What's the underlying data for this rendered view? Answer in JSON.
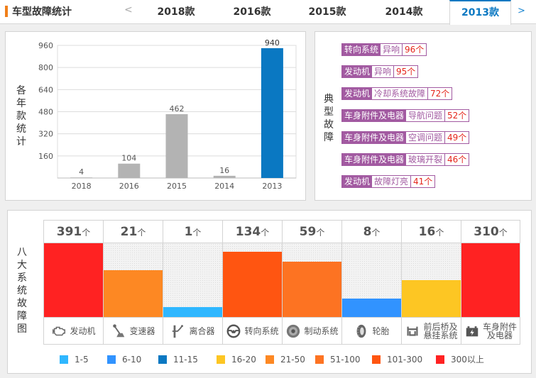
{
  "header": {
    "title": "车型故障统计",
    "prev_label": "<",
    "next_label": ">",
    "tabs": [
      {
        "label": "2018款",
        "active": false
      },
      {
        "label": "2016款",
        "active": false
      },
      {
        "label": "2015款",
        "active": false
      },
      {
        "label": "2014款",
        "active": false
      },
      {
        "label": "2013款",
        "active": true
      }
    ]
  },
  "year_chart": {
    "vertical_label": [
      "各",
      "年",
      "款",
      "统",
      "计"
    ]
  },
  "chart_data": [
    {
      "type": "bar",
      "title": "",
      "ylabel": "各年款统计",
      "xlabel": "",
      "categories": [
        "2018",
        "2016",
        "2015",
        "2014",
        "2013"
      ],
      "values": [
        4,
        104,
        462,
        16,
        940
      ],
      "highlight_category": "2013",
      "colors": {
        "default": "#b3b3b3",
        "highlight": "#0a78c2"
      },
      "ylim": [
        0,
        960
      ],
      "yticks": [
        160,
        320,
        480,
        640,
        800,
        960
      ],
      "grid": true,
      "data_labels": true
    },
    {
      "type": "bar",
      "title": "",
      "ylabel": "八大系统故障图",
      "categories": [
        "发动机",
        "变速器",
        "离合器",
        "转向系统",
        "制动系统",
        "轮胎",
        "前后桥及悬挂系统",
        "车身附件及电器"
      ],
      "values": [
        391,
        21,
        1,
        134,
        59,
        8,
        16,
        310
      ],
      "unit": "个",
      "legend_position": "bottom"
    }
  ],
  "typical_faults": {
    "vertical_label": [
      "典",
      "型",
      "故",
      "障"
    ],
    "items": [
      {
        "system": "转向系统",
        "issue": "异响",
        "count": "96个"
      },
      {
        "system": "发动机",
        "issue": "异响",
        "count": "95个"
      },
      {
        "system": "发动机",
        "issue": "冷却系统故障",
        "count": "72个"
      },
      {
        "system": "车身附件及电器",
        "issue": "导航问题",
        "count": "52个"
      },
      {
        "system": "车身附件及电器",
        "issue": "空调问题",
        "count": "49个"
      },
      {
        "system": "车身附件及电器",
        "issue": "玻璃开裂",
        "count": "46个"
      },
      {
        "system": "发动机",
        "issue": "故障灯亮",
        "count": "41个"
      }
    ],
    "colors": {
      "tag": "#a25aa1",
      "count": "#e5261c"
    }
  },
  "systems": {
    "vertical_label": [
      "八",
      "大",
      "系",
      "统",
      "故",
      "障",
      "图"
    ],
    "unit": "个",
    "items": [
      {
        "name": "发动机",
        "count": "391",
        "level": 1.0,
        "color": "#ff2222",
        "icon": "engine-icon"
      },
      {
        "name": "变速器",
        "count": "21",
        "level": 0.63,
        "color": "#fd8823",
        "icon": "gear-shifter-icon"
      },
      {
        "name": "离合器",
        "count": "1",
        "level": 0.13,
        "color": "#2fb7ff",
        "icon": "clutch-pedal-icon"
      },
      {
        "name": "转向系统",
        "count": "134",
        "level": 0.88,
        "color": "#ff5511",
        "icon": "steering-wheel-icon"
      },
      {
        "name": "制动系统",
        "count": "59",
        "level": 0.75,
        "color": "#fd7322",
        "icon": "brake-disc-icon"
      },
      {
        "name": "轮胎",
        "count": "8",
        "level": 0.25,
        "color": "#3193ff",
        "icon": "tire-icon"
      },
      {
        "name": "前后桥及\n悬挂系统",
        "name_lines": [
          "前后桥及",
          "悬挂系统"
        ],
        "count": "16",
        "level": 0.5,
        "color": "#fdc623",
        "icon": "suspension-icon"
      },
      {
        "name": "车身附件\n及电器",
        "name_lines": [
          "车身附件",
          "及电器"
        ],
        "count": "310",
        "level": 1.0,
        "color": "#ff2222",
        "icon": "battery-icon"
      }
    ]
  },
  "legend": {
    "items": [
      {
        "label": "1-5",
        "color": "#2fb7ff"
      },
      {
        "label": "6-10",
        "color": "#3193ff"
      },
      {
        "label": "11-15",
        "color": "#0a78c2"
      },
      {
        "label": "16-20",
        "color": "#fdc623"
      },
      {
        "label": "21-50",
        "color": "#fd8823"
      },
      {
        "label": "51-100",
        "color": "#fd7322"
      },
      {
        "label": "101-300",
        "color": "#ff5511"
      },
      {
        "label": "300以上",
        "color": "#ff2222"
      }
    ]
  }
}
